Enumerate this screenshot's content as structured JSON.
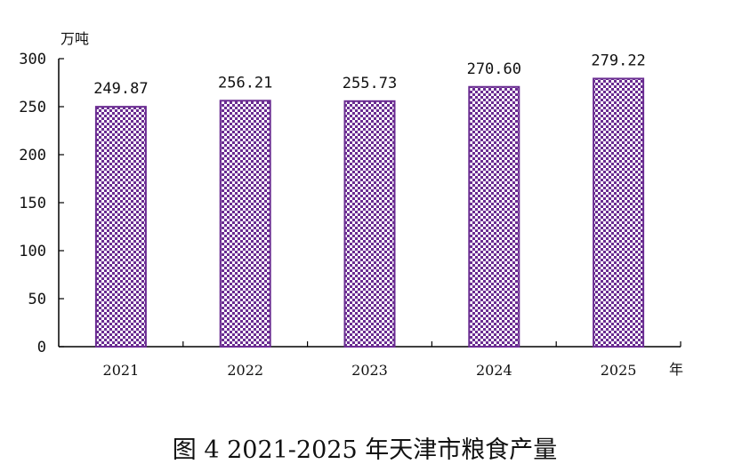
{
  "chart_data": {
    "type": "bar",
    "title": "图 4 2021-2025 年天津市粮食产量",
    "ylabel": "万吨",
    "xlabel": "年",
    "categories": [
      "2021",
      "2022",
      "2023",
      "2024",
      "2025"
    ],
    "values": [
      249.87,
      256.21,
      255.73,
      270.6,
      279.22
    ],
    "value_labels": [
      "249.87",
      "256.21",
      "255.73",
      "270.60",
      "279.22"
    ],
    "ylim": [
      0,
      300
    ],
    "yticks": [
      "0",
      "50",
      "100",
      "150",
      "200",
      "250",
      "300"
    ],
    "grid": false,
    "legend": "none",
    "bar_color": "#6a2c91",
    "bar_fill_pattern": "checker"
  }
}
